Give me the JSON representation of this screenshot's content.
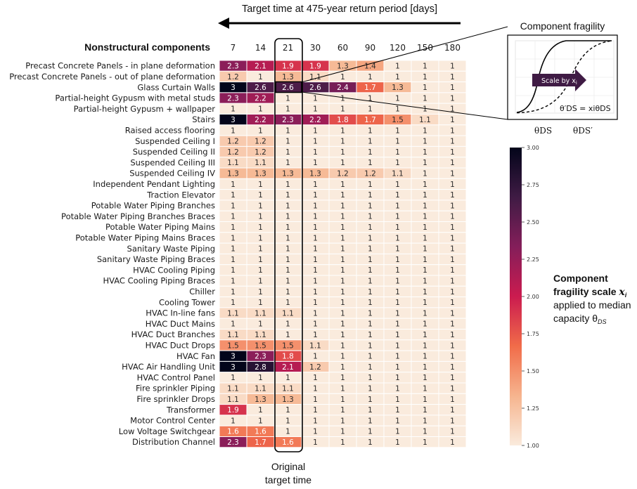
{
  "top_title": "Target time at 475-year return period [days]",
  "rows_heading": "Nonstructural components",
  "original_label_line1": "Original",
  "original_label_line2": "target time",
  "inset": {
    "title": "Component fragility",
    "arrow_label": "Scale by x",
    "arrow_label_sub": "i",
    "formula": "θ′DS = xiθDS",
    "theta_left": "θDS",
    "theta_right": "θDS′"
  },
  "colorbar_caption": {
    "line1": "Component",
    "line2": "fragility scale",
    "line2_var": "x",
    "line2_sub": "i",
    "line3": "applied to median",
    "line4": "capacity θ",
    "line4_sub": "DS"
  },
  "colors": {
    "cmap": [
      "#faebdd",
      "#f6b48e",
      "#f16c49",
      "#cb1b4f",
      "#841e5a",
      "#3f1b44",
      "#03051a"
    ],
    "outline": "#000000",
    "arrow": "#000000",
    "inset_arrow": "#3f1b44"
  },
  "chart_data": {
    "type": "heatmap",
    "xlabel": "Target time at 475-year return period [days]",
    "ylabel": "Nonstructural components",
    "x": [
      "7",
      "14",
      "21",
      "30",
      "60",
      "90",
      "120",
      "150",
      "180"
    ],
    "y": [
      "Precast Concrete Panels - in plane deformation",
      "Precast Concrete Panels - out of plane deformation",
      "Glass Curtain Walls",
      "Partial-height Gypusm with metal studs",
      "Partial-height Gypusm + wallpaper",
      "Stairs",
      "Raised access flooring",
      "Suspended Ceiling I",
      "Suspended Ceiling II",
      "Suspended Ceiling III",
      "Suspended Ceiling IV",
      "Independent Pendant Lighting",
      "Traction Elevator",
      "Potable Water Piping Branches",
      "Potable Water Piping Branches Braces",
      "Potable Water Piping Mains",
      "Potable Water Piping Mains Braces",
      "Sanitary Waste Piping",
      "Sanitary Waste Piping Braces",
      "HVAC Cooling Piping",
      "HVAC Cooling Piping Braces",
      "Chiller",
      "Cooling Tower",
      "HVAC In-line fans",
      "HVAC Duct Mains",
      "HVAC Duct Branches",
      "HVAC Duct Drops",
      "HVAC Fan",
      "HVAC Air Handling Unit",
      "HVAC Control Panel",
      "Fire sprinkler Piping",
      "Fire sprinkler Drops",
      "Transformer",
      "Motor Control Center",
      "Low Voltage Switchgear",
      "Distribution Channel"
    ],
    "values": [
      [
        2.3,
        2.1,
        1.9,
        1.9,
        1.3,
        1.4,
        1,
        1,
        1
      ],
      [
        1.2,
        1,
        1.3,
        1.1,
        1,
        1,
        1,
        1,
        1
      ],
      [
        3,
        2.6,
        2.6,
        2.6,
        2.4,
        1.7,
        1.3,
        1,
        1
      ],
      [
        2.3,
        2.2,
        1,
        1,
        1,
        1,
        1,
        1,
        1
      ],
      [
        1,
        1,
        1,
        1,
        1,
        1,
        1,
        1,
        1
      ],
      [
        3,
        2.2,
        2.3,
        2.2,
        1.8,
        1.7,
        1.5,
        1.1,
        1
      ],
      [
        1,
        1,
        1,
        1,
        1,
        1,
        1,
        1,
        1
      ],
      [
        1.2,
        1.2,
        1,
        1,
        1,
        1,
        1,
        1,
        1
      ],
      [
        1.2,
        1.2,
        1,
        1,
        1,
        1,
        1,
        1,
        1
      ],
      [
        1.1,
        1.1,
        1,
        1,
        1,
        1,
        1,
        1,
        1
      ],
      [
        1.3,
        1.3,
        1.3,
        1.3,
        1.2,
        1.2,
        1.1,
        1,
        1
      ],
      [
        1,
        1,
        1,
        1,
        1,
        1,
        1,
        1,
        1
      ],
      [
        1,
        1,
        1,
        1,
        1,
        1,
        1,
        1,
        1
      ],
      [
        1,
        1,
        1,
        1,
        1,
        1,
        1,
        1,
        1
      ],
      [
        1,
        1,
        1,
        1,
        1,
        1,
        1,
        1,
        1
      ],
      [
        1,
        1,
        1,
        1,
        1,
        1,
        1,
        1,
        1
      ],
      [
        1,
        1,
        1,
        1,
        1,
        1,
        1,
        1,
        1
      ],
      [
        1,
        1,
        1,
        1,
        1,
        1,
        1,
        1,
        1
      ],
      [
        1,
        1,
        1,
        1,
        1,
        1,
        1,
        1,
        1
      ],
      [
        1,
        1,
        1,
        1,
        1,
        1,
        1,
        1,
        1
      ],
      [
        1,
        1,
        1,
        1,
        1,
        1,
        1,
        1,
        1
      ],
      [
        1,
        1,
        1,
        1,
        1,
        1,
        1,
        1,
        1
      ],
      [
        1,
        1,
        1,
        1,
        1,
        1,
        1,
        1,
        1
      ],
      [
        1.1,
        1.1,
        1.1,
        1,
        1,
        1,
        1,
        1,
        1
      ],
      [
        1,
        1,
        1,
        1,
        1,
        1,
        1,
        1,
        1
      ],
      [
        1.1,
        1.1,
        1,
        1,
        1,
        1,
        1,
        1,
        1
      ],
      [
        1.5,
        1.5,
        1.5,
        1.1,
        1,
        1,
        1,
        1,
        1
      ],
      [
        3,
        2.3,
        1.8,
        1,
        1,
        1,
        1,
        1,
        1
      ],
      [
        3,
        2.8,
        2.1,
        1.2,
        1,
        1,
        1,
        1,
        1
      ],
      [
        1,
        1,
        1,
        1,
        1,
        1,
        1,
        1,
        1
      ],
      [
        1.1,
        1.1,
        1.1,
        1,
        1,
        1,
        1,
        1,
        1
      ],
      [
        1.1,
        1.3,
        1.3,
        1,
        1,
        1,
        1,
        1,
        1
      ],
      [
        1.9,
        1,
        1,
        1,
        1,
        1,
        1,
        1,
        1
      ],
      [
        1,
        1,
        1,
        1,
        1,
        1,
        1,
        1,
        1
      ],
      [
        1.6,
        1.6,
        1,
        1,
        1,
        1,
        1,
        1,
        1
      ],
      [
        2.3,
        1.7,
        1.6,
        1,
        1,
        1,
        1,
        1,
        1
      ]
    ],
    "highlighted_column": "21",
    "colorbar": {
      "min": 1.0,
      "max": 3.0,
      "ticks": [
        "1.00",
        "1.25",
        "1.50",
        "1.75",
        "2.00",
        "2.25",
        "2.50",
        "2.75",
        "3.00"
      ]
    },
    "grid": false
  }
}
